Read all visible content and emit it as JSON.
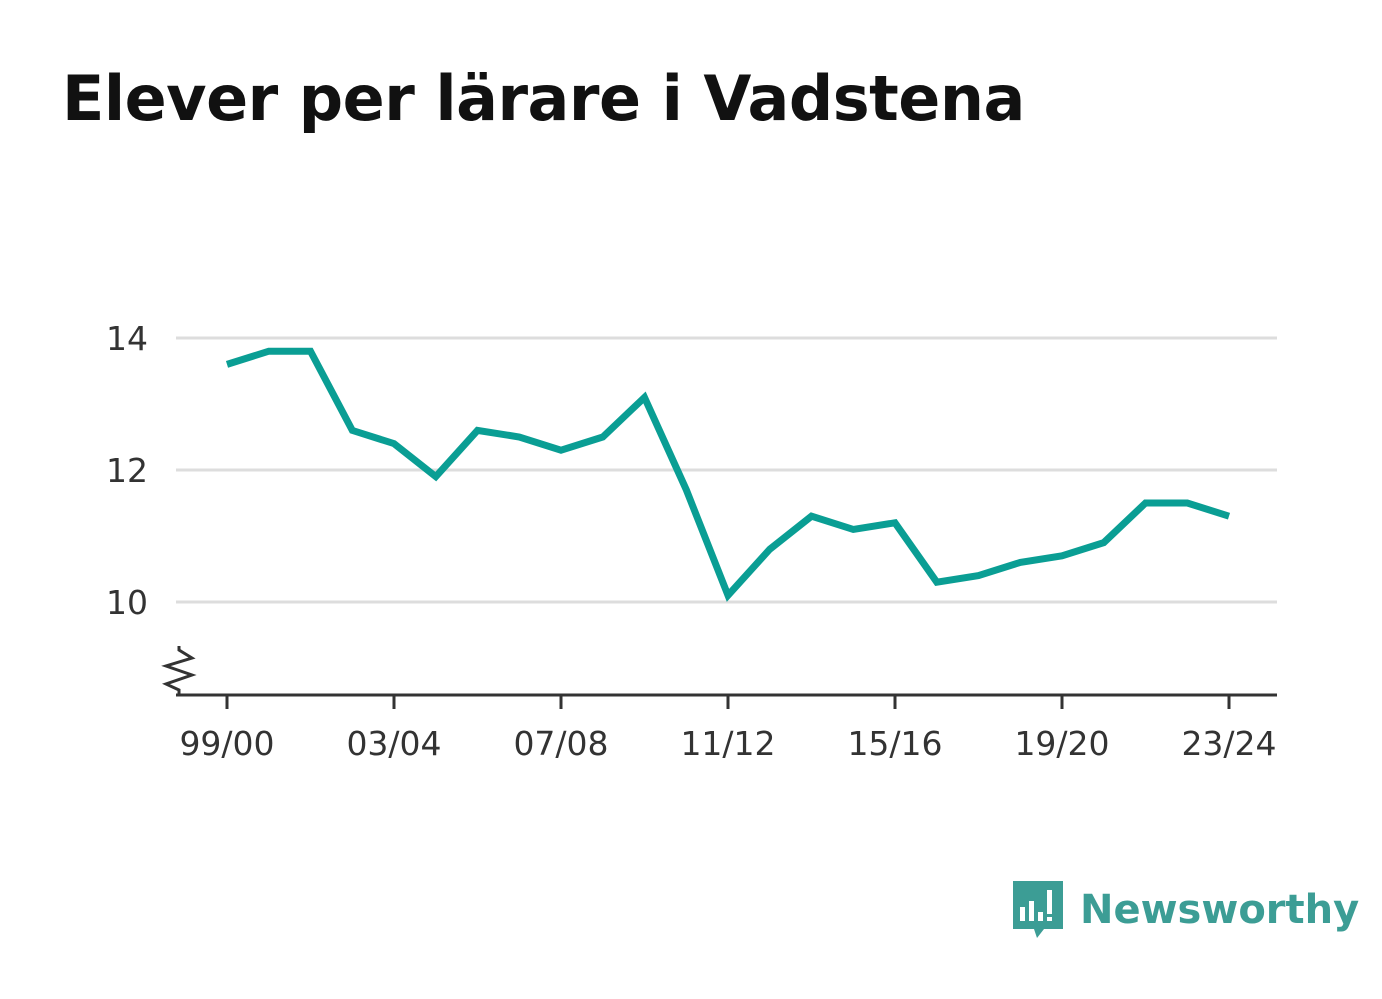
{
  "chart_data": {
    "type": "line",
    "title": "Elever per lärare i Vadstena",
    "xlabel": "",
    "ylabel": "",
    "x": [
      "99/00",
      "00/01",
      "01/02",
      "02/03",
      "03/04",
      "04/05",
      "05/06",
      "06/07",
      "07/08",
      "08/09",
      "09/10",
      "10/11",
      "11/12",
      "12/13",
      "13/14",
      "14/15",
      "15/16",
      "16/17",
      "17/18",
      "18/19",
      "19/20",
      "20/21",
      "21/22",
      "22/23",
      "23/24"
    ],
    "x_ticks": [
      "99/00",
      "03/04",
      "07/08",
      "11/12",
      "15/16",
      "19/20",
      "23/24"
    ],
    "series": [
      {
        "values": [
          13.6,
          13.8,
          13.8,
          12.6,
          12.4,
          11.9,
          12.6,
          12.5,
          12.3,
          12.5,
          13.1,
          11.7,
          10.1,
          10.8,
          11.3,
          11.1,
          11.2,
          10.3,
          10.4,
          10.6,
          10.7,
          10.9,
          11.5,
          11.5,
          11.3
        ]
      }
    ],
    "y_ticks": [
      10,
      12,
      14
    ],
    "y_tick_labels": [
      "10",
      "12",
      "14"
    ],
    "ylim": [
      8.6,
      14.6
    ],
    "y_axis_break": true,
    "grid": true,
    "line_color": "#0a9e94",
    "grid_color": "#dddddd",
    "axis_color": "#333333"
  },
  "brand": {
    "name": "Newsworthy",
    "icon": "bar-chart-speech-bubble-icon",
    "color": "#3c9d95"
  }
}
